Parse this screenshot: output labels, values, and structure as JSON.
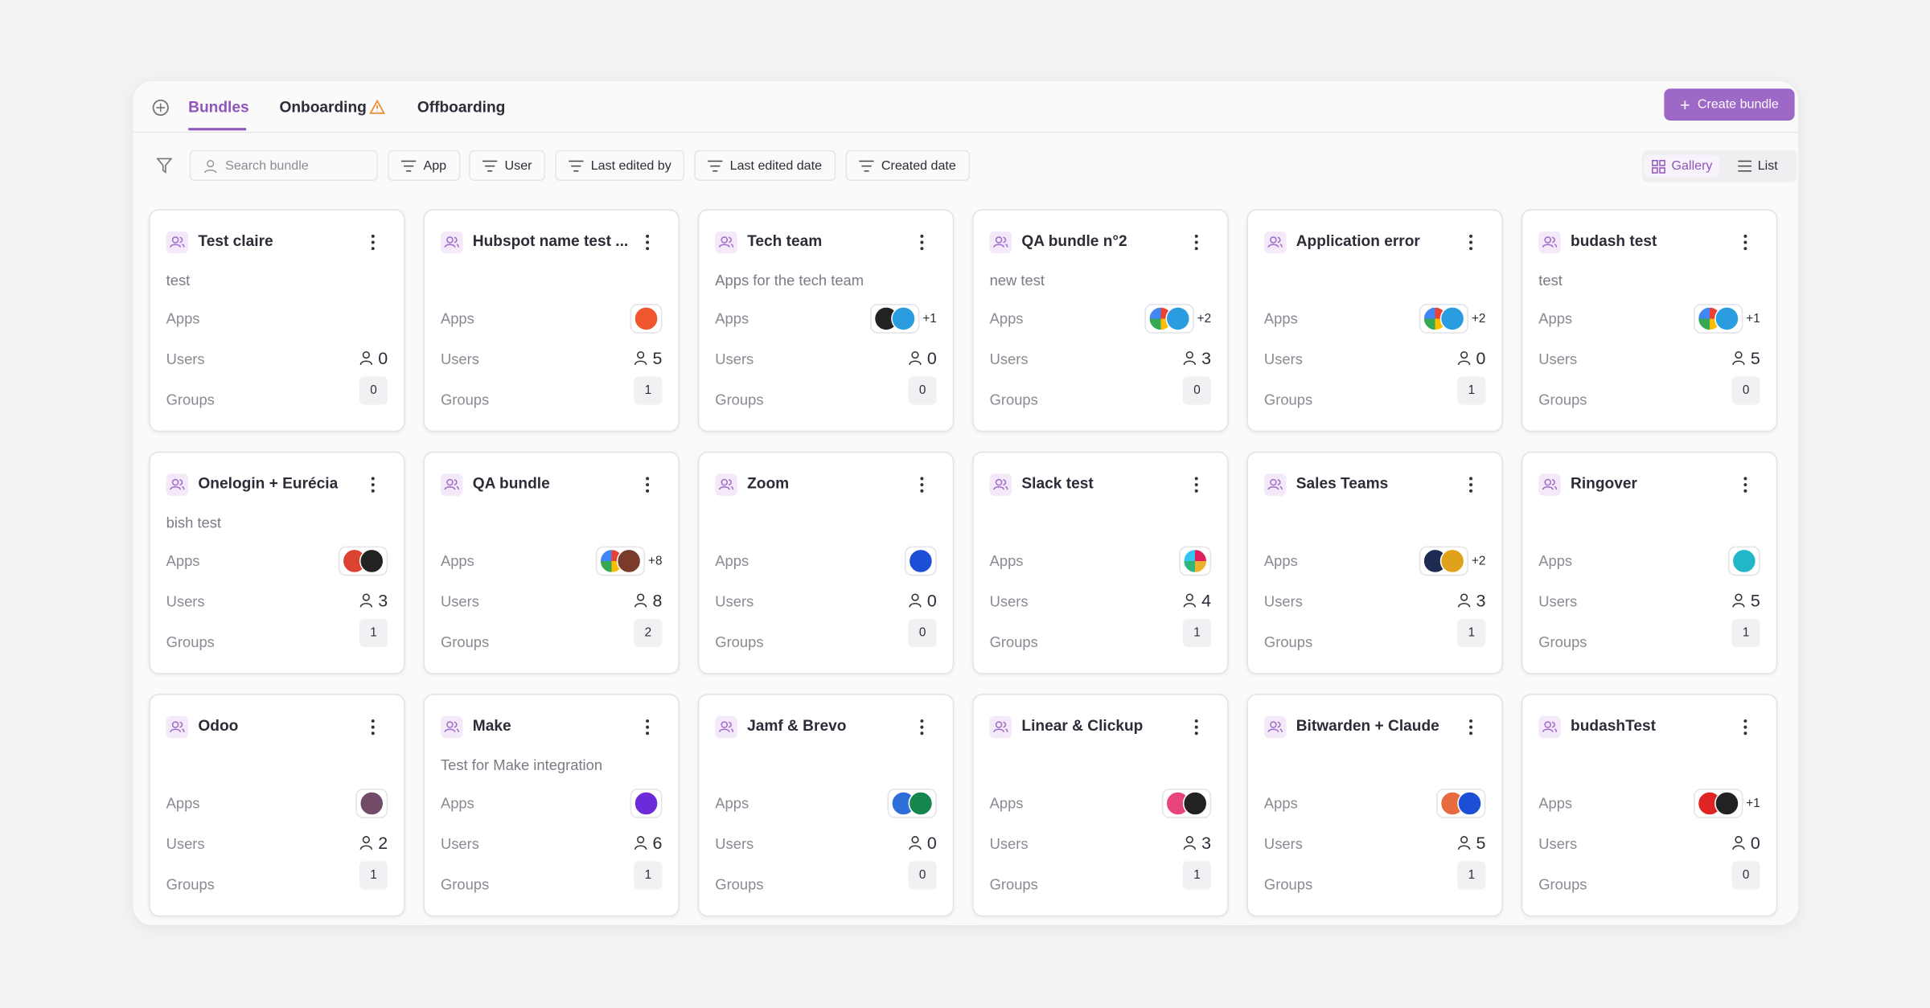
{
  "tabs": [
    "Bundles",
    "Onboarding",
    "Offboarding"
  ],
  "create_button": "Create bundle",
  "search_placeholder": "Search bundle",
  "filters": [
    "App",
    "User",
    "Last edited by",
    "Last edited date",
    "Created date"
  ],
  "views": [
    "Gallery",
    "List"
  ],
  "labels": {
    "apps": "Apps",
    "users": "Users",
    "groups": "Groups"
  },
  "cards": [
    {
      "title": "Test claire",
      "description": "test",
      "users": 0,
      "groups": 0
    },
    {
      "title": "Hubspot name test ...",
      "users": 5,
      "groups": 1
    },
    {
      "title": "Tech team",
      "description": "Apps for the tech team",
      "apps_more": "+1",
      "users": 0,
      "groups": 0
    },
    {
      "title": "QA bundle n°2",
      "description": "new test",
      "apps_more": "+2",
      "users": 3,
      "groups": 0
    },
    {
      "title": "Application error",
      "apps_more": "+2",
      "users": 0,
      "groups": 1
    },
    {
      "title": "budash test",
      "description": "test",
      "apps_more": "+1",
      "users": 5,
      "groups": 0
    },
    {
      "title": "Onelogin + Eurécia",
      "description": "bish test",
      "users": 3,
      "groups": 1
    },
    {
      "title": "QA bundle",
      "apps_more": "+8",
      "users": 8,
      "groups": 2
    },
    {
      "title": "Zoom",
      "users": 0,
      "groups": 0
    },
    {
      "title": "Slack test",
      "users": 4,
      "groups": 1
    },
    {
      "title": "Sales Teams",
      "apps_more": "+2",
      "users": 3,
      "groups": 1
    },
    {
      "title": "Ringover",
      "users": 5,
      "groups": 1
    },
    {
      "title": "Odoo",
      "users": 2,
      "groups": 1
    },
    {
      "title": "Make",
      "description": "Test for Make integration",
      "users": 6,
      "groups": 1
    },
    {
      "title": "Jamf & Brevo",
      "users": 0,
      "groups": 0
    },
    {
      "title": "Linear & Clickup",
      "users": 3,
      "groups": 1
    },
    {
      "title": "Bitwarden + Claude",
      "users": 5,
      "groups": 1
    },
    {
      "title": "budashTest",
      "apps_more": "+1",
      "users": 0,
      "groups": 0
    }
  ]
}
